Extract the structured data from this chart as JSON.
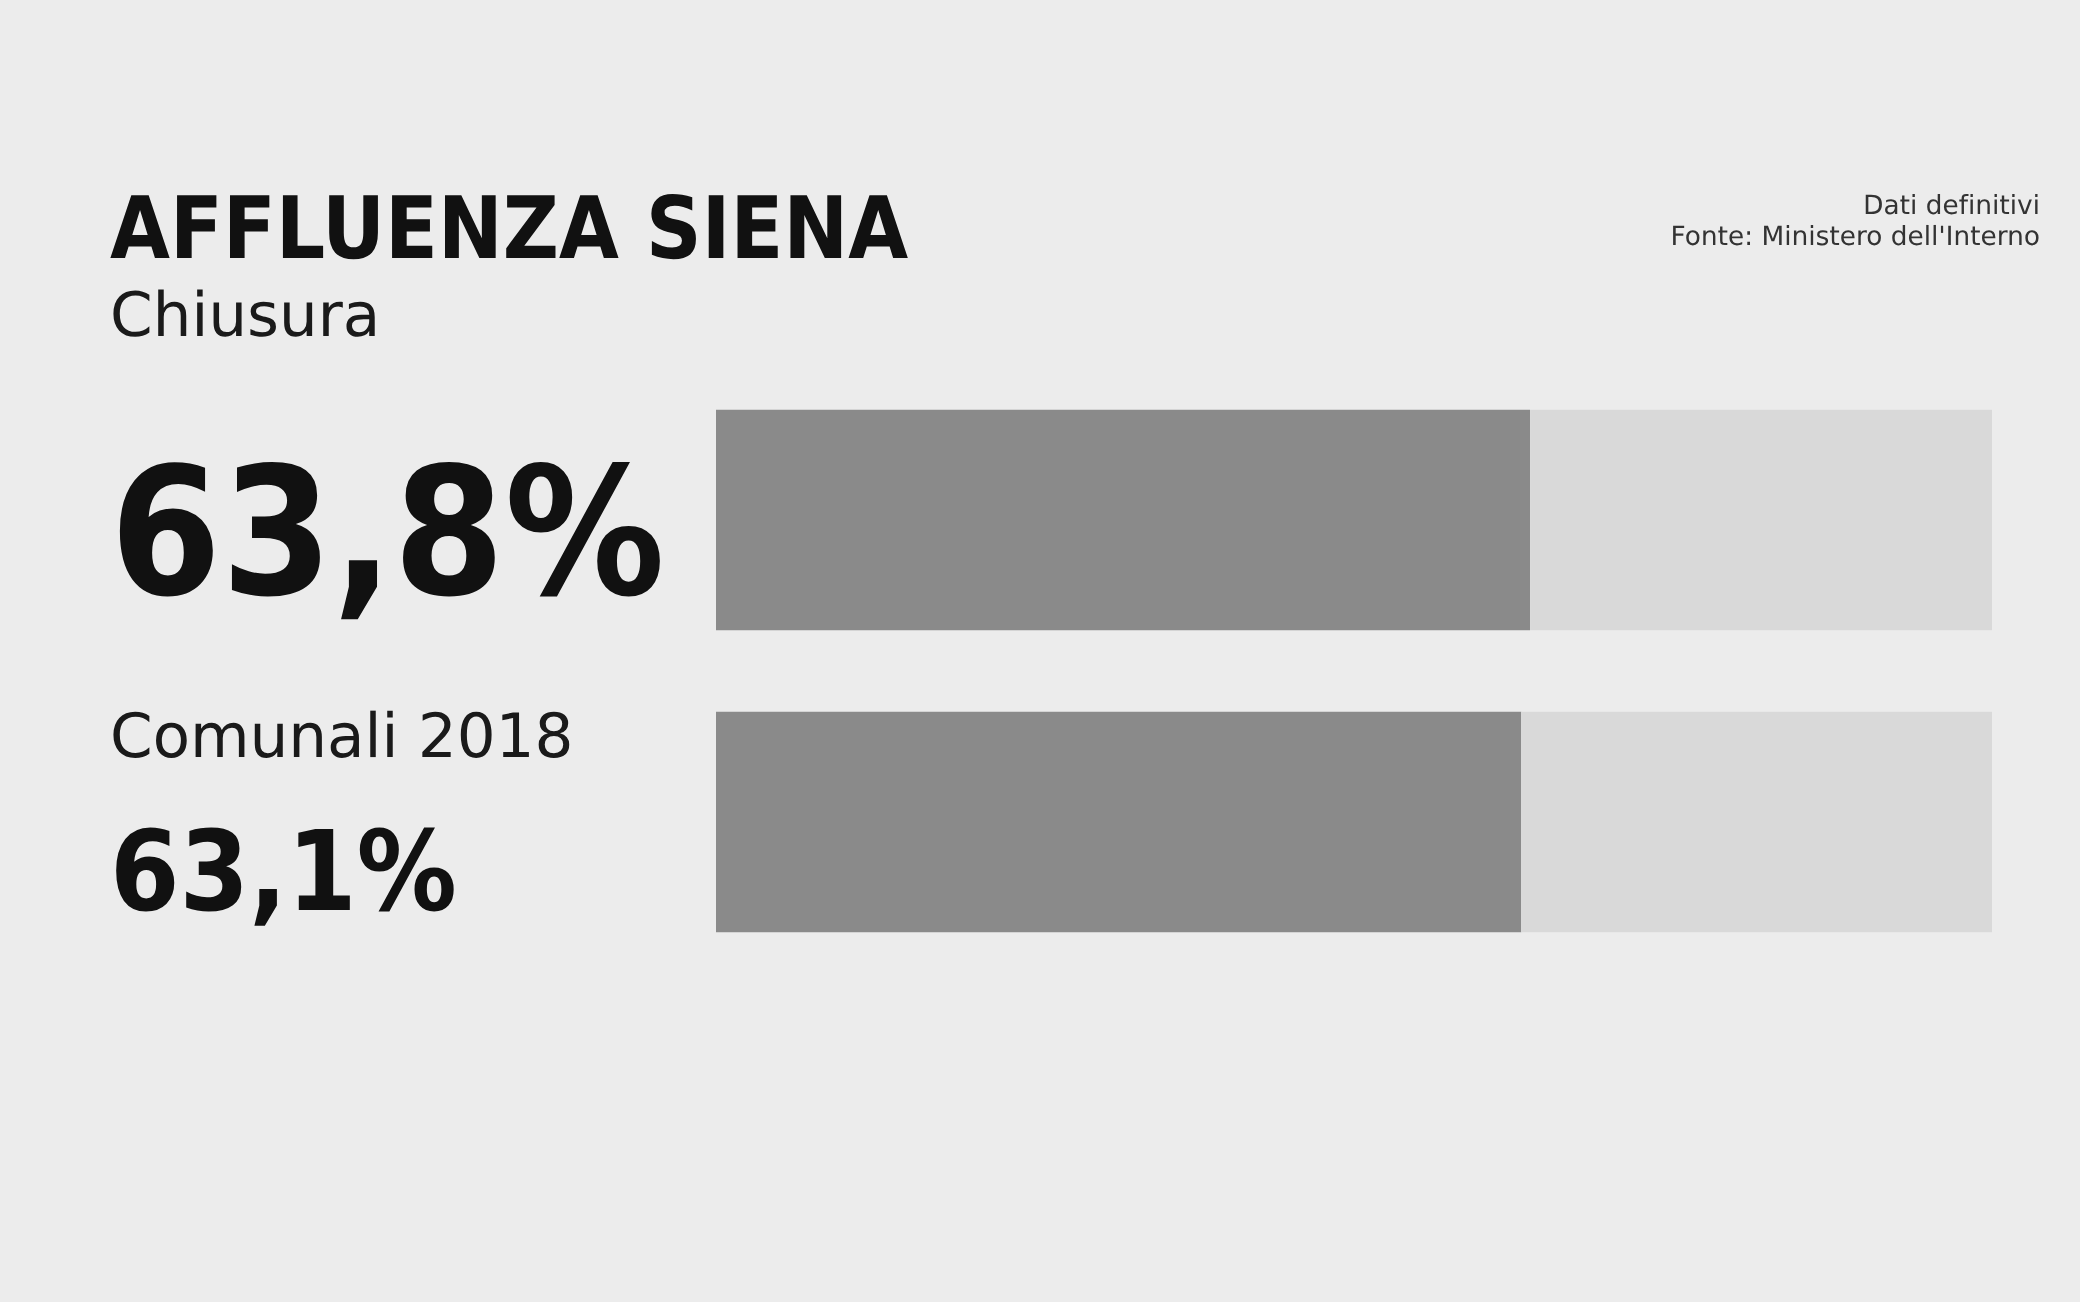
{
  "chart_data": {
    "type": "bar",
    "title": "AFFLUENZA SIENA",
    "orientation": "horizontal",
    "stacked": true,
    "categories": [
      "Chiusura",
      "Comunali 2018"
    ],
    "series": [
      {
        "color": "#8a8a8a",
        "values": [
          63.8,
          63.1
        ],
        "value_labels": [
          "63,8%",
          "63,1%"
        ]
      },
      {
        "color": "#d9d9d9",
        "values": [
          36.2,
          36.9
        ]
      }
    ],
    "xlim": [
      0,
      100
    ],
    "tick_labels": false,
    "annotations": [
      "Dati definitivi",
      "Fonte: Ministero dell'Interno"
    ]
  }
}
